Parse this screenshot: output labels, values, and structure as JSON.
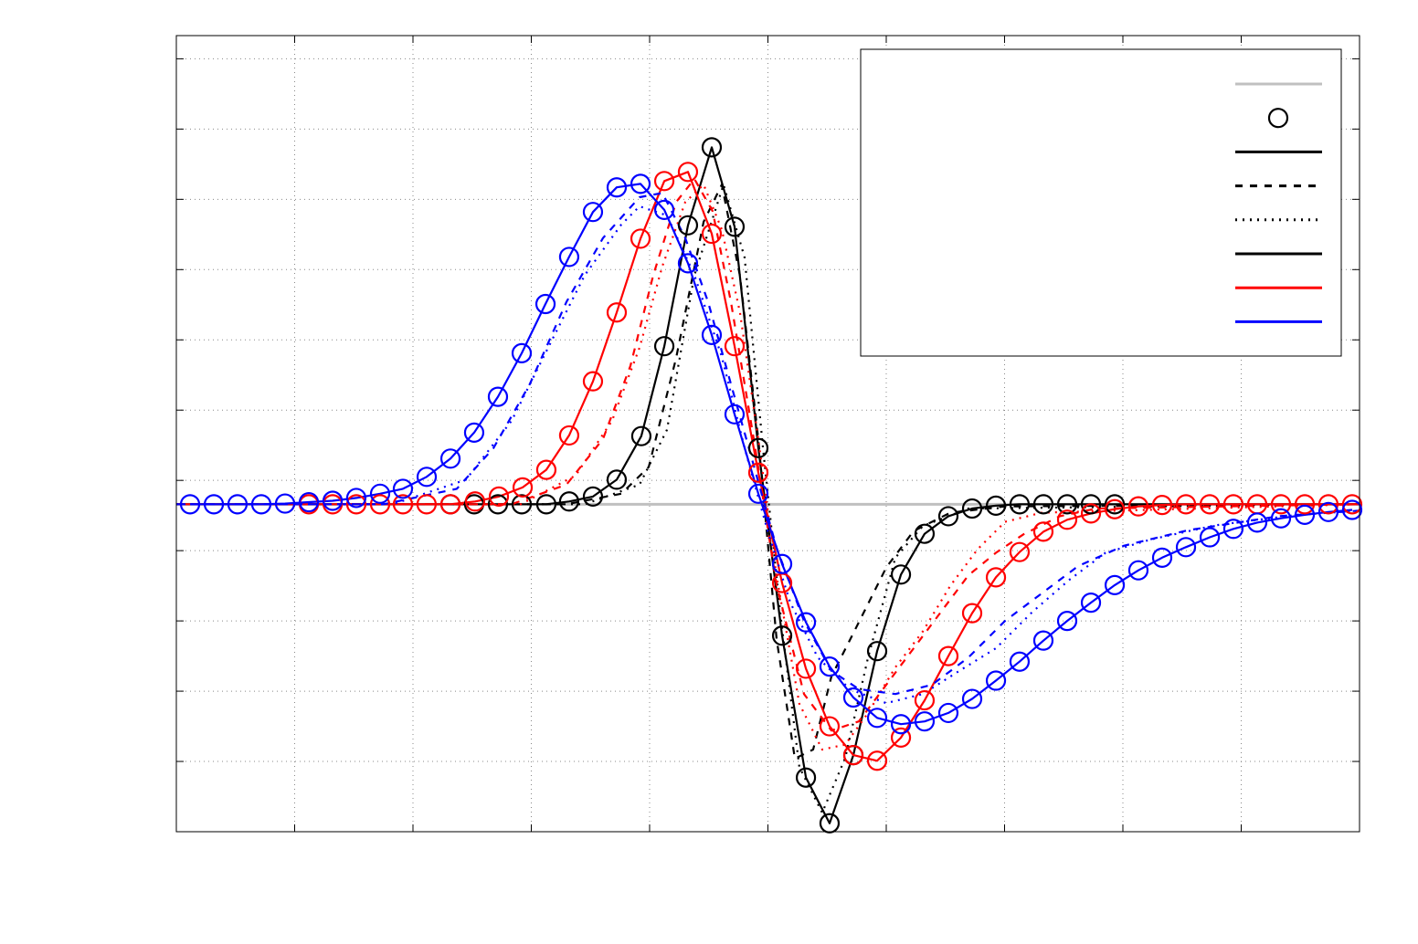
{
  "chart_data": {
    "type": "line",
    "title": "",
    "xlabel": "",
    "ylabel": "",
    "xlim": [
      0,
      10
    ],
    "ylim": [
      0,
      11.33
    ],
    "grid": true,
    "legend_placement": "top-right",
    "reference_line": {
      "y": 4.66,
      "color": "#c0c0c0"
    },
    "series": [
      {
        "color": "#000000",
        "style": "solid",
        "markers": true,
        "x": [
          0,
          2.317,
          2.517,
          2.718,
          2.919,
          3.127,
          3.32,
          3.521,
          3.722,
          3.93,
          4.124,
          4.324,
          4.525,
          4.718,
          4.919,
          5.12,
          5.321,
          5.521,
          5.722,
          5.923,
          6.124,
          6.324,
          6.525,
          6.726,
          6.927,
          7.127,
          7.328,
          7.529,
          7.73,
          7.931,
          10
        ],
        "y": [
          4.66,
          4.66,
          4.66,
          4.66,
          4.66,
          4.66,
          4.7,
          4.77,
          5.01,
          5.63,
          6.91,
          8.63,
          9.74,
          8.61,
          5.46,
          2.79,
          0.77,
          0.12,
          1.09,
          2.57,
          3.66,
          4.24,
          4.49,
          4.6,
          4.64,
          4.66,
          4.66,
          4.66,
          4.66,
          4.66,
          4.66
        ]
      },
      {
        "color": "#000000",
        "style": "dashed",
        "markers": false,
        "x": [
          0,
          3.297,
          3.761,
          3.992,
          4.224,
          4.456,
          4.61,
          4.764,
          4.919,
          5.073,
          5.228,
          5.382,
          5.537,
          5.768,
          6.0,
          6.232,
          6.541,
          7.004,
          10
        ],
        "y": [
          4.66,
          4.66,
          4.81,
          5.19,
          6.74,
          8.68,
          9.21,
          7.91,
          5.58,
          2.74,
          1.04,
          1.17,
          2.21,
          2.98,
          3.76,
          4.28,
          4.54,
          4.63,
          4.66
        ]
      },
      {
        "color": "#000000",
        "style": "dotted",
        "markers": false,
        "x": [
          0,
          3.452,
          3.915,
          4.147,
          4.378,
          4.625,
          4.803,
          4.958,
          5.112,
          5.266,
          5.459,
          5.653,
          5.846,
          6.077,
          6.309,
          6.695,
          10
        ],
        "y": [
          4.66,
          4.66,
          4.94,
          5.72,
          7.92,
          9.21,
          8.17,
          5.46,
          3.0,
          0.92,
          0.27,
          1.05,
          2.48,
          3.9,
          4.35,
          4.6,
          4.66
        ]
      },
      {
        "color": "#ff0000",
        "style": "solid",
        "markers": true,
        "x": [
          0,
          1.12,
          1.321,
          1.521,
          1.722,
          1.915,
          2.115,
          2.317,
          2.525,
          2.726,
          2.927,
          3.127,
          3.32,
          3.521,
          3.722,
          3.923,
          4.124,
          4.324,
          4.525,
          4.718,
          4.919,
          5.12,
          5.321,
          5.521,
          5.722,
          5.923,
          6.124,
          6.324,
          6.525,
          6.726,
          6.927,
          7.127,
          7.328,
          7.529,
          7.73,
          7.931,
          8.131,
          8.332,
          8.533,
          8.734,
          8.934,
          9.135,
          9.336,
          9.537,
          9.737,
          9.938,
          10
        ],
        "y": [
          4.66,
          4.66,
          4.66,
          4.66,
          4.66,
          4.66,
          4.66,
          4.66,
          4.7,
          4.77,
          4.9,
          5.15,
          5.64,
          6.41,
          7.39,
          8.44,
          9.26,
          9.39,
          8.51,
          6.91,
          5.11,
          3.54,
          2.32,
          1.5,
          1.09,
          1.01,
          1.34,
          1.87,
          2.5,
          3.11,
          3.62,
          3.98,
          4.27,
          4.44,
          4.53,
          4.59,
          4.63,
          4.65,
          4.66,
          4.66,
          4.66,
          4.66,
          4.66,
          4.66,
          4.66,
          4.66,
          4.66
        ]
      },
      {
        "color": "#ff0000",
        "style": "dashed",
        "markers": false,
        "x": [
          0,
          2.834,
          3.297,
          3.606,
          3.838,
          4.031,
          4.224,
          4.378,
          4.533,
          4.687,
          4.88,
          5.073,
          5.305,
          5.537,
          5.768,
          6.0,
          6.232,
          6.463,
          6.695,
          6.927,
          7.158,
          7.467,
          7.776,
          10
        ],
        "y": [
          4.66,
          4.66,
          4.94,
          5.59,
          6.63,
          7.92,
          8.96,
          9.29,
          8.83,
          7.54,
          5.59,
          3.51,
          1.96,
          1.44,
          1.57,
          2.09,
          2.61,
          3.13,
          3.65,
          3.97,
          4.23,
          4.49,
          4.6,
          4.66
        ]
      },
      {
        "color": "#ff0000",
        "style": "dotted",
        "markers": false,
        "x": [
          0,
          2.911,
          3.375,
          3.683,
          3.915,
          4.108,
          4.301,
          4.456,
          4.61,
          4.764,
          4.919,
          5.073,
          5.266,
          5.459,
          5.653,
          5.846,
          6.077,
          6.309,
          6.541,
          6.772,
          7.004,
          7.313,
          10
        ],
        "y": [
          4.66,
          4.66,
          5.07,
          5.85,
          6.89,
          8.05,
          8.96,
          9.21,
          8.57,
          7.39,
          5.58,
          3.63,
          1.82,
          1.17,
          1.24,
          1.69,
          2.34,
          2.85,
          3.5,
          4.02,
          4.41,
          4.54,
          4.66
        ]
      },
      {
        "color": "#0000ff",
        "style": "solid",
        "markers": true,
        "x": [
          0.116,
          0.317,
          0.517,
          0.718,
          0.919,
          1.12,
          1.321,
          1.521,
          1.722,
          1.915,
          2.116,
          2.317,
          2.517,
          2.718,
          2.919,
          3.12,
          3.32,
          3.521,
          3.722,
          3.923,
          4.124,
          4.324,
          4.525,
          4.718,
          4.919,
          5.12,
          5.321,
          5.521,
          5.722,
          5.923,
          6.124,
          6.324,
          6.525,
          6.726,
          6.927,
          7.127,
          7.328,
          7.529,
          7.73,
          7.931,
          8.131,
          8.332,
          8.533,
          8.734,
          8.934,
          9.135,
          9.336,
          9.537,
          9.737,
          9.938
        ],
        "y": [
          4.66,
          4.66,
          4.66,
          4.66,
          4.67,
          4.69,
          4.71,
          4.75,
          4.81,
          4.88,
          5.05,
          5.31,
          5.68,
          6.19,
          6.81,
          7.51,
          8.18,
          8.82,
          9.17,
          9.22,
          8.85,
          8.09,
          7.07,
          5.94,
          4.81,
          3.81,
          2.98,
          2.35,
          1.91,
          1.62,
          1.53,
          1.57,
          1.69,
          1.89,
          2.15,
          2.42,
          2.72,
          3.0,
          3.26,
          3.51,
          3.72,
          3.9,
          4.05,
          4.19,
          4.31,
          4.4,
          4.46,
          4.51,
          4.55,
          4.58
        ]
      },
      {
        "color": "#0000ff",
        "style": "dashed",
        "markers": false,
        "x": [
          0,
          1.753,
          2.371,
          2.68,
          2.988,
          3.297,
          3.606,
          3.915,
          4.108,
          4.301,
          4.494,
          4.687,
          4.88,
          5.073,
          5.305,
          5.537,
          5.768,
          6.077,
          6.386,
          6.695,
          7.004,
          7.313,
          7.622,
          8.008,
          8.548,
          9.32,
          10
        ],
        "y": [
          4.66,
          4.66,
          4.88,
          5.46,
          6.37,
          7.54,
          8.45,
          9.03,
          9.09,
          8.45,
          7.54,
          6.37,
          5.21,
          4.04,
          3.0,
          2.29,
          2.03,
          1.96,
          2.09,
          2.48,
          3.0,
          3.39,
          3.78,
          4.07,
          4.29,
          4.49,
          4.57
        ]
      },
      {
        "color": "#0000ff",
        "style": "dotted",
        "markers": false,
        "x": [
          0,
          1.83,
          2.448,
          2.834,
          3.143,
          3.452,
          3.761,
          3.915,
          4.147,
          4.378,
          4.61,
          4.803,
          4.996,
          5.189,
          5.421,
          5.691,
          6.0,
          6.309,
          6.618,
          6.927,
          7.236,
          7.544,
          7.853,
          8.239,
          8.78,
          9.475,
          10
        ],
        "y": [
          4.66,
          4.66,
          5.01,
          5.85,
          6.89,
          7.92,
          8.64,
          8.9,
          8.77,
          7.92,
          6.76,
          5.46,
          4.29,
          3.26,
          2.48,
          2.03,
          1.83,
          1.96,
          2.29,
          2.61,
          3.13,
          3.58,
          3.97,
          4.16,
          4.36,
          4.51,
          4.57
        ]
      }
    ],
    "legend": [
      {
        "kind": "line",
        "color": "#c0c0c0",
        "style": "solid"
      },
      {
        "kind": "marker",
        "color": "#000000",
        "style": "circle"
      },
      {
        "kind": "line",
        "color": "#000000",
        "style": "solid"
      },
      {
        "kind": "line",
        "color": "#000000",
        "style": "dashed"
      },
      {
        "kind": "line",
        "color": "#000000",
        "style": "dotted"
      },
      {
        "kind": "line",
        "color": "#000000",
        "style": "solid"
      },
      {
        "kind": "line",
        "color": "#ff0000",
        "style": "solid"
      },
      {
        "kind": "line",
        "color": "#0000ff",
        "style": "solid"
      }
    ]
  }
}
